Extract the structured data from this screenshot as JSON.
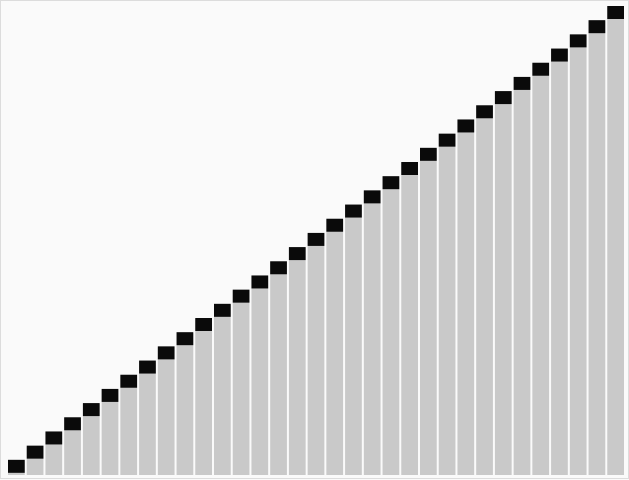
{
  "chart_data": {
    "type": "bar",
    "series": [
      {
        "values": [
          1,
          2,
          3,
          4,
          5,
          6,
          7,
          8,
          9,
          10,
          11,
          12,
          13,
          14,
          15,
          16,
          17,
          18,
          19,
          20,
          21,
          22,
          23,
          24,
          25,
          26,
          27,
          28,
          29,
          30,
          31,
          32,
          33
        ]
      }
    ],
    "ylim": [
      0,
      33
    ],
    "grid": false,
    "title": "",
    "xlabel": "",
    "ylabel": "",
    "colors": {
      "background": "#fafafa",
      "bar": "#c9c9c9",
      "marker": "#0a0a0a",
      "frame": "#dcdcdc"
    }
  }
}
